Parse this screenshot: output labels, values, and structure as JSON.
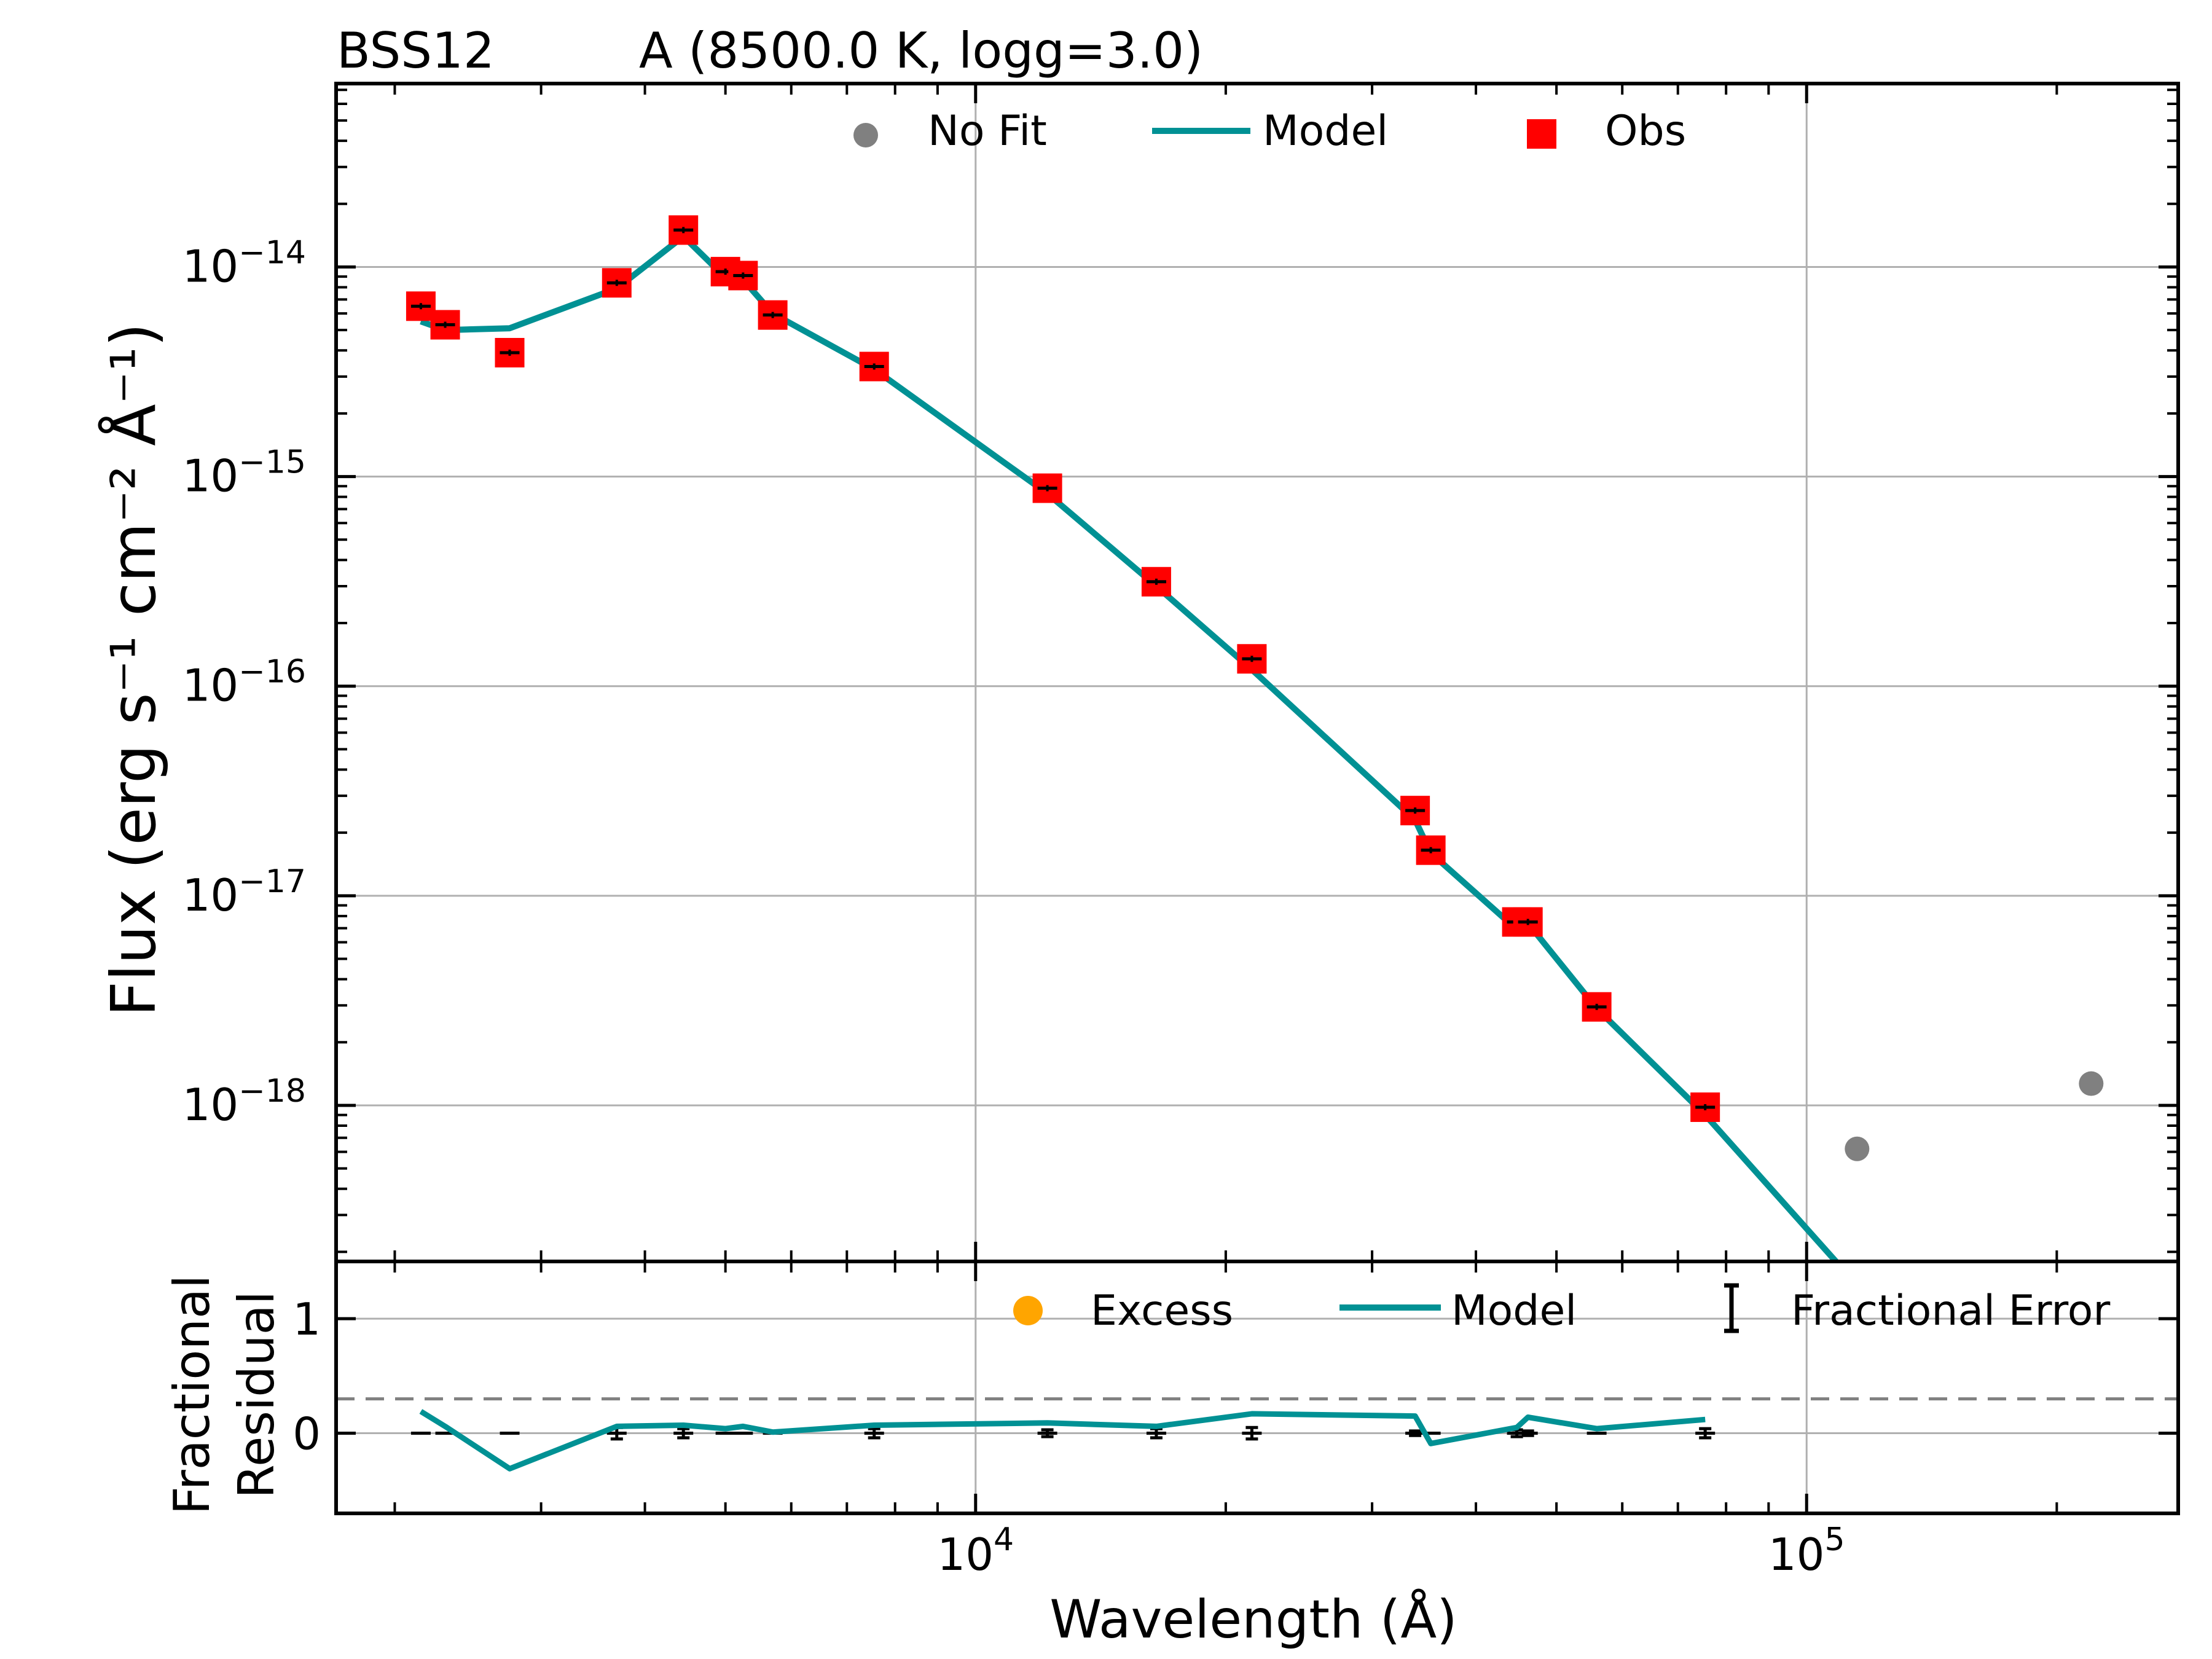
{
  "title": {
    "star": "BSS12",
    "model": "A (8500.0 K, logg=3.0)"
  },
  "top_panel": {
    "ylabel": "Flux (erg s⁻¹ cm⁻² Å⁻¹)",
    "legend": {
      "nofit": "No Fit",
      "model": "Model",
      "obs": "Obs"
    }
  },
  "bottom_panel": {
    "ylabel_line1": "Fractional",
    "ylabel_line2": "Residual",
    "legend": {
      "excess": "Excess",
      "model": "Model",
      "frac_error": "Fractional Error"
    }
  },
  "xlabel": "Wavelength (Å)",
  "colors": {
    "model": "#009194",
    "obs": "#ff0000",
    "nofit": "#808080",
    "excess": "#ffa500",
    "grid": "#b0b0b0",
    "dashed": "#808080"
  },
  "chart_data": [
    {
      "type": "scatter",
      "panel": "sed",
      "xscale": "log",
      "yscale": "log",
      "xlim": [
        1700,
        280000
      ],
      "ylim": [
        1.8e-19,
        7.5e-14
      ],
      "grid": true,
      "legend_position": "top",
      "xticks": [
        10000,
        100000
      ],
      "yticks": [
        1e-14,
        1e-15,
        1e-16,
        1e-17,
        1e-18
      ],
      "ytick_labels": [
        {
          "base": "10",
          "exp": "−14"
        },
        {
          "base": "10",
          "exp": "−15"
        },
        {
          "base": "10",
          "exp": "−16"
        },
        {
          "base": "10",
          "exp": "−17"
        },
        {
          "base": "10",
          "exp": "−18"
        }
      ],
      "series": [
        {
          "name": "Obs",
          "marker": "square",
          "x": [
            2150,
            2300,
            2750,
            3700,
            4450,
            5000,
            5250,
            5700,
            7550,
            12200,
            16500,
            21500,
            33800,
            35300,
            44800,
            46200,
            55900,
            75500
          ],
          "y": [
            6.5e-15,
            5.3e-15,
            3.9e-15,
            8.4e-15,
            1.5e-14,
            9.5e-15,
            9.1e-15,
            5.9e-15,
            3.35e-15,
            8.8e-16,
            3.15e-16,
            1.35e-16,
            2.55e-17,
            1.65e-17,
            7.5e-18,
            7.5e-18,
            2.95e-18,
            9.8e-19
          ]
        },
        {
          "name": "Model",
          "type": "line",
          "x": [
            2150,
            2300,
            2750,
            3700,
            4450,
            5000,
            5250,
            5700,
            7550,
            12200,
            16500,
            21500,
            33800,
            35300,
            44800,
            46200,
            55900,
            75500,
            113000
          ],
          "y": [
            5.5e-15,
            5e-15,
            5.1e-15,
            7.9e-15,
            1.4e-14,
            8.9e-15,
            8.7e-15,
            6e-15,
            3.25e-15,
            8.3e-16,
            3e-16,
            1.2e-16,
            2.3e-17,
            1.6e-17,
            6.9e-18,
            7.4e-18,
            2.9e-18,
            9e-19,
            1.5e-19
          ]
        },
        {
          "name": "No Fit",
          "marker": "circle",
          "x": [
            115000,
            220000
          ],
          "y": [
            6.2e-19,
            1.27e-18
          ]
        }
      ]
    },
    {
      "type": "line",
      "panel": "residual",
      "xscale": "log",
      "xlim": [
        1700,
        280000
      ],
      "ylim": [
        -0.7,
        1.5
      ],
      "yticks": [
        0,
        1
      ],
      "grid": true,
      "legend_position": "top-right",
      "threshold_line": 0.3,
      "series": [
        {
          "name": "Model",
          "x": [
            2150,
            2300,
            2750,
            3700,
            4450,
            5000,
            5250,
            5700,
            7550,
            12200,
            16500,
            21500,
            33800,
            35300,
            44800,
            46200,
            55900,
            75500
          ],
          "y": [
            0.19,
            0.06,
            -0.31,
            0.06,
            0.07,
            0.04,
            0.06,
            0.01,
            0.07,
            0.09,
            0.06,
            0.17,
            0.15,
            -0.09,
            0.05,
            0.14,
            0.04,
            0.12
          ]
        },
        {
          "name": "Fractional Error",
          "x": [
            2150,
            2300,
            2750,
            3700,
            4450,
            5000,
            5250,
            5700,
            7550,
            12200,
            16500,
            21500,
            33800,
            35300,
            44800,
            46200,
            55900,
            75500
          ],
          "y": [
            0,
            0,
            0,
            0,
            0,
            0,
            0,
            0,
            0,
            0,
            0,
            0,
            0,
            0,
            0,
            0,
            0,
            0
          ],
          "err": [
            0.0,
            0.0,
            0.0,
            0.05,
            0.04,
            0.0,
            0.0,
            0.0,
            0.04,
            0.03,
            0.04,
            0.05,
            0.02,
            0.0,
            0.03,
            0.02,
            0.0,
            0.04
          ]
        }
      ]
    }
  ]
}
